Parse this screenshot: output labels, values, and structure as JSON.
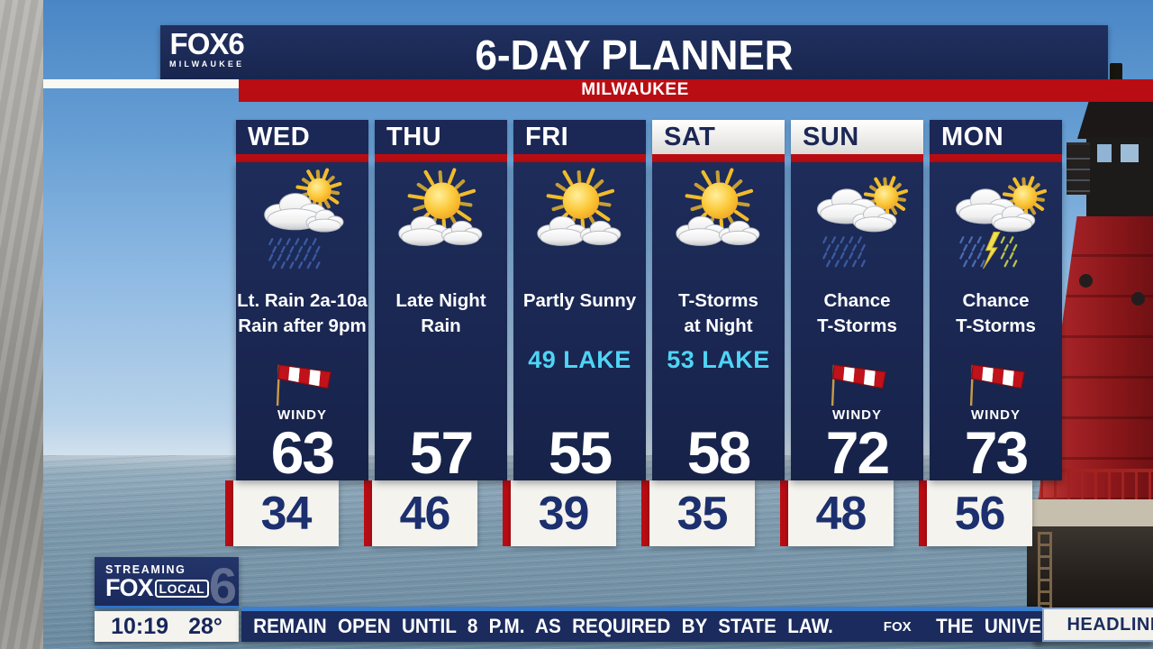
{
  "header": {
    "logo": {
      "name": "FOX6",
      "sub": "MILWAUKEE"
    },
    "title": "6-DAY PLANNER",
    "location_banner": "MILWAUKEE"
  },
  "forecast": {
    "windy_label": "WINDY",
    "days": [
      {
        "day": "WED",
        "weekend": false,
        "icon": "sun-cloud-rain",
        "condition": [
          "Lt. Rain 2a-10a",
          "Rain after 9pm"
        ],
        "lake": null,
        "windy": true,
        "high": "63",
        "low": "34"
      },
      {
        "day": "THU",
        "weekend": false,
        "icon": "sun-clouds",
        "condition": [
          "Late Night",
          "Rain"
        ],
        "lake": null,
        "windy": false,
        "high": "57",
        "low": "46"
      },
      {
        "day": "FRI",
        "weekend": false,
        "icon": "sun-clouds",
        "condition": [
          "Partly Sunny"
        ],
        "lake": "49 LAKE",
        "windy": false,
        "high": "55",
        "low": "39"
      },
      {
        "day": "SAT",
        "weekend": true,
        "icon": "sun-clouds",
        "condition": [
          "T-Storms",
          "at Night"
        ],
        "lake": "53 LAKE",
        "windy": false,
        "high": "58",
        "low": "35"
      },
      {
        "day": "SUN",
        "weekend": true,
        "icon": "clouds-rain-sun",
        "condition": [
          "Chance",
          "T-Storms"
        ],
        "lake": null,
        "windy": true,
        "high": "72",
        "low": "48"
      },
      {
        "day": "MON",
        "weekend": false,
        "icon": "clouds-tstorm-sun",
        "condition": [
          "Chance",
          "T-Storms"
        ],
        "lake": null,
        "windy": true,
        "high": "73",
        "low": "56"
      }
    ]
  },
  "bug": {
    "streaming_label": "STREAMING",
    "brand": "FOX",
    "brand_local": "LOCAL",
    "brand_number": "6",
    "time": "10:19",
    "temperature": "28°"
  },
  "ticker": {
    "headline_1": "REMAIN OPEN UNTIL 8 P.M. AS REQUIRED BY STATE LAW.",
    "separator_logo": "FOX",
    "headline_2": "THE UNIVERSITIES",
    "tab_label": "HEADLINES"
  },
  "colors": {
    "navy": "#1b2754",
    "red": "#b90d13",
    "lake_cyan": "#4fd4f5",
    "low_box": "#f4f3ee"
  }
}
